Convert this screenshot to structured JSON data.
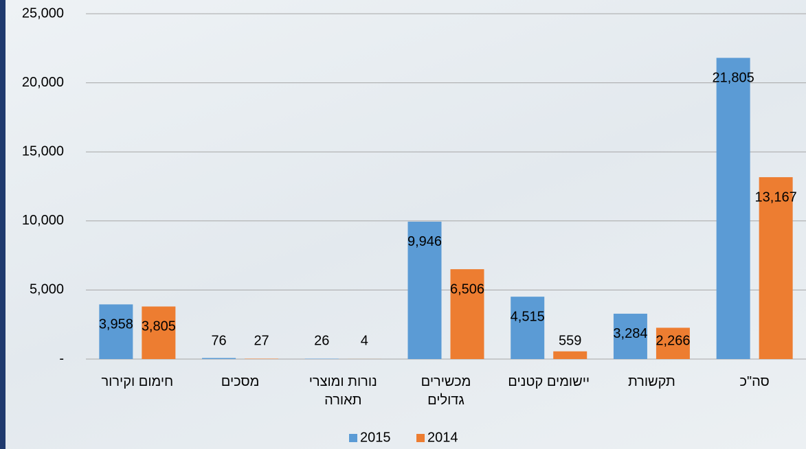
{
  "chart_data": {
    "type": "bar",
    "categories": [
      "חימום וקירור",
      "מסכים",
      "נורות ומוצרי\nתאורה",
      "מכשירים\nגדולים",
      "יישומים קטנים",
      "תקשורת",
      "סה\"כ"
    ],
    "series": [
      {
        "name": "2015",
        "color": "#5b9bd5",
        "values": [
          3958,
          76,
          26,
          9946,
          4515,
          3284,
          21805
        ],
        "value_labels": [
          "3,958",
          "76",
          "26",
          "9,946",
          "4,515",
          "3,284",
          "21,805"
        ]
      },
      {
        "name": "2014",
        "color": "#ed7d31",
        "values": [
          3805,
          27,
          4,
          6506,
          559,
          2266,
          13167
        ],
        "value_labels": [
          "3,805",
          "27",
          "4",
          "6,506",
          "559",
          "2,266",
          "13,167"
        ]
      }
    ],
    "ylim": [
      0,
      25000
    ],
    "yticks": [
      {
        "value": 0,
        "label": "-"
      },
      {
        "value": 5000,
        "label": "5,000"
      },
      {
        "value": 10000,
        "label": "10,000"
      },
      {
        "value": 15000,
        "label": "15,000"
      },
      {
        "value": 20000,
        "label": "20,000"
      },
      {
        "value": 25000,
        "label": "25,000"
      }
    ],
    "grid": true,
    "legend": "bottom"
  }
}
